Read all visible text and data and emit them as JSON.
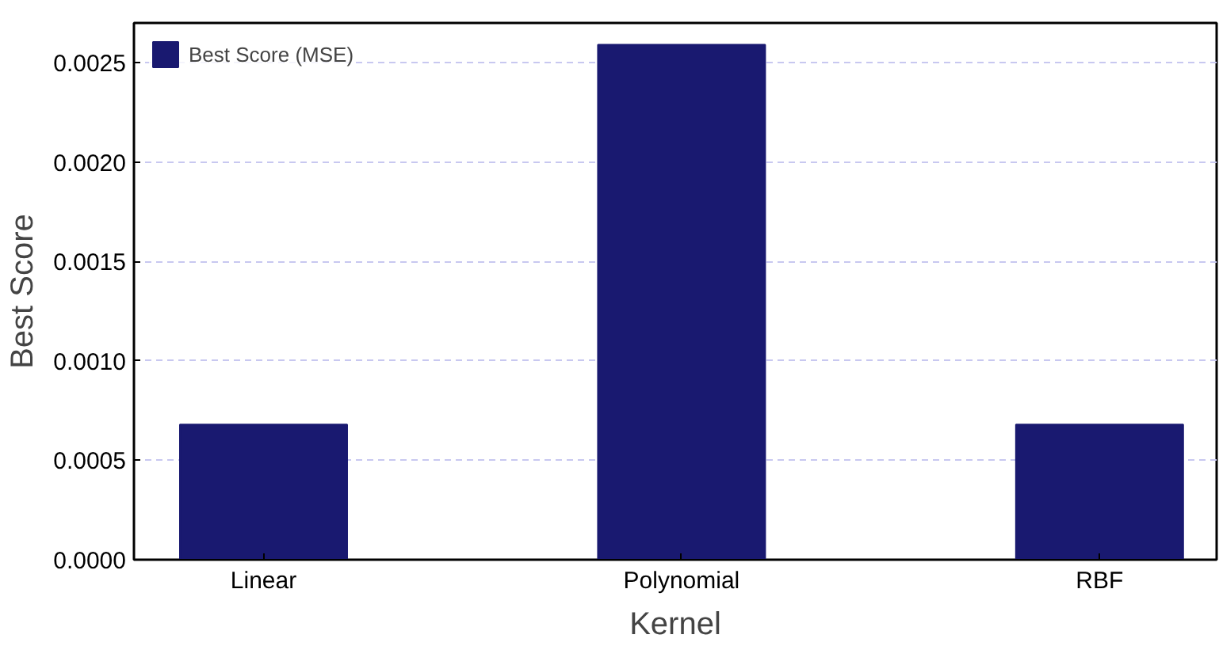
{
  "chart_data": {
    "type": "bar",
    "xlabel": "Kernel",
    "ylabel": "Best Score",
    "categories": [
      "Linear",
      "Polynomial",
      "RBF"
    ],
    "series": [
      {
        "name": "Best Score (MSE)",
        "color": "#191970",
        "values": [
          0.00068,
          0.00259,
          0.00068
        ]
      }
    ],
    "ylim": [
      0,
      0.0027
    ],
    "yticks": [
      {
        "value": 0,
        "label": "0.0000"
      },
      {
        "value": 0.0005,
        "label": "0.0005"
      },
      {
        "value": 0.001,
        "label": "0.0010"
      },
      {
        "value": 0.0015,
        "label": "0.0015"
      },
      {
        "value": 0.002,
        "label": "0.0020"
      },
      {
        "value": 0.0025,
        "label": "0.0025"
      }
    ],
    "grid": "y",
    "legend": "top left"
  }
}
